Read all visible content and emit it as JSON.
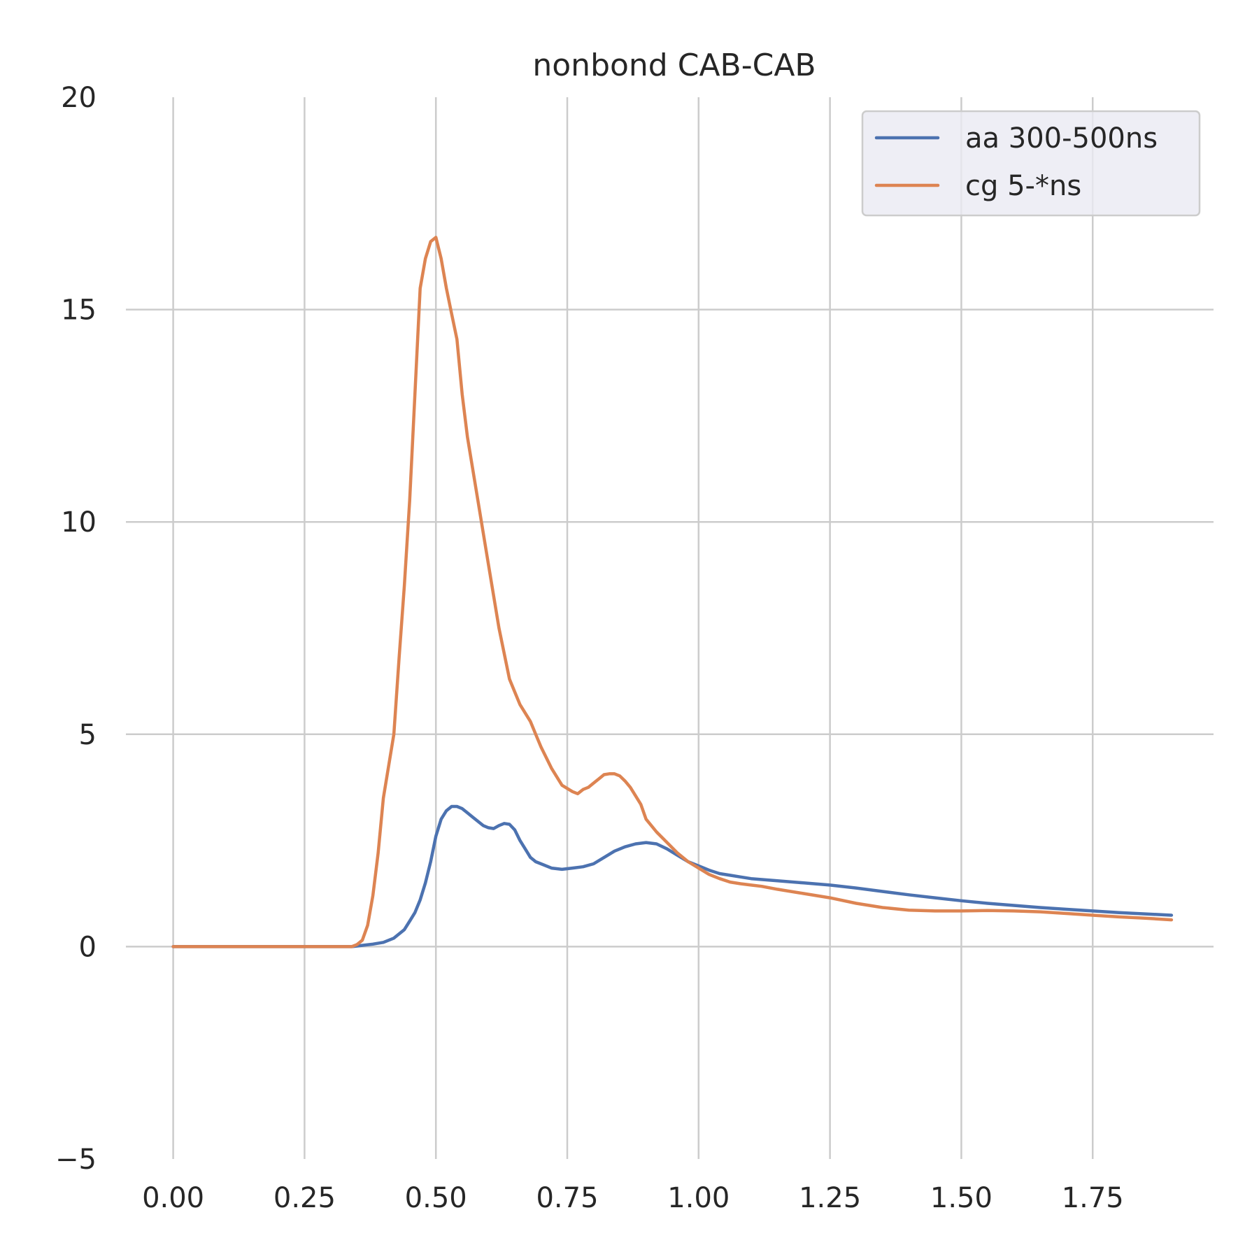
{
  "chart_data": {
    "type": "line",
    "title": "nonbond CAB-CAB",
    "xlabel": "",
    "ylabel": "",
    "xlim": [
      -0.09,
      1.98
    ],
    "ylim": [
      -5,
      20
    ],
    "xticks": [
      "0.00",
      "0.25",
      "0.50",
      "0.75",
      "1.00",
      "1.25",
      "1.50",
      "1.75"
    ],
    "xtick_values": [
      0,
      0.25,
      0.5,
      0.75,
      1.0,
      1.25,
      1.5,
      1.75
    ],
    "yticks": [
      "−5",
      "0",
      "5",
      "10",
      "15",
      "20"
    ],
    "ytick_values": [
      -5,
      0,
      5,
      10,
      15,
      20
    ],
    "grid": true,
    "legend_position": "top-right",
    "series": [
      {
        "name": "aa 300-500ns",
        "color": "#4c72b0",
        "x": [
          0,
          0.1,
          0.2,
          0.3,
          0.34,
          0.36,
          0.38,
          0.4,
          0.42,
          0.44,
          0.45,
          0.46,
          0.47,
          0.48,
          0.49,
          0.5,
          0.51,
          0.52,
          0.53,
          0.54,
          0.55,
          0.56,
          0.57,
          0.58,
          0.59,
          0.6,
          0.61,
          0.62,
          0.63,
          0.64,
          0.65,
          0.66,
          0.67,
          0.68,
          0.69,
          0.7,
          0.72,
          0.74,
          0.76,
          0.78,
          0.8,
          0.82,
          0.84,
          0.86,
          0.88,
          0.9,
          0.92,
          0.94,
          0.96,
          0.98,
          1.0,
          1.02,
          1.04,
          1.06,
          1.08,
          1.1,
          1.15,
          1.2,
          1.25,
          1.3,
          1.35,
          1.4,
          1.45,
          1.5,
          1.55,
          1.6,
          1.65,
          1.7,
          1.75,
          1.8,
          1.85,
          1.9
        ],
        "y": [
          0,
          0,
          0,
          0,
          0,
          0.03,
          0.06,
          0.1,
          0.2,
          0.4,
          0.6,
          0.8,
          1.1,
          1.5,
          2.0,
          2.6,
          3.0,
          3.2,
          3.3,
          3.3,
          3.25,
          3.15,
          3.05,
          2.95,
          2.85,
          2.8,
          2.78,
          2.85,
          2.9,
          2.88,
          2.75,
          2.5,
          2.3,
          2.1,
          2.0,
          1.95,
          1.85,
          1.82,
          1.85,
          1.88,
          1.95,
          2.1,
          2.25,
          2.35,
          2.42,
          2.45,
          2.42,
          2.3,
          2.15,
          2.0,
          1.9,
          1.8,
          1.72,
          1.68,
          1.64,
          1.6,
          1.55,
          1.5,
          1.45,
          1.38,
          1.3,
          1.22,
          1.15,
          1.08,
          1.02,
          0.97,
          0.92,
          0.88,
          0.84,
          0.8,
          0.77,
          0.74
        ]
      },
      {
        "name": "cg 5-*ns",
        "color": "#dd8452",
        "x": [
          0,
          0.1,
          0.2,
          0.3,
          0.34,
          0.35,
          0.36,
          0.37,
          0.38,
          0.39,
          0.4,
          0.42,
          0.43,
          0.44,
          0.45,
          0.46,
          0.47,
          0.48,
          0.49,
          0.5,
          0.51,
          0.52,
          0.53,
          0.54,
          0.55,
          0.56,
          0.58,
          0.6,
          0.62,
          0.64,
          0.65,
          0.66,
          0.67,
          0.68,
          0.69,
          0.7,
          0.72,
          0.74,
          0.76,
          0.77,
          0.78,
          0.79,
          0.8,
          0.81,
          0.82,
          0.83,
          0.84,
          0.85,
          0.86,
          0.87,
          0.88,
          0.89,
          0.9,
          0.92,
          0.94,
          0.96,
          0.98,
          1.0,
          1.02,
          1.04,
          1.06,
          1.08,
          1.1,
          1.12,
          1.15,
          1.2,
          1.25,
          1.3,
          1.35,
          1.4,
          1.45,
          1.5,
          1.55,
          1.6,
          1.65,
          1.7,
          1.75,
          1.8,
          1.85,
          1.9
        ],
        "y": [
          0,
          0,
          0,
          0,
          0,
          0.05,
          0.15,
          0.5,
          1.2,
          2.2,
          3.5,
          5.0,
          6.8,
          8.5,
          10.5,
          13.0,
          15.5,
          16.2,
          16.6,
          16.7,
          16.2,
          15.5,
          14.9,
          14.3,
          13.0,
          12.0,
          10.5,
          9.0,
          7.5,
          6.3,
          6.0,
          5.7,
          5.5,
          5.3,
          5.0,
          4.7,
          4.2,
          3.8,
          3.65,
          3.6,
          3.7,
          3.75,
          3.85,
          3.95,
          4.05,
          4.07,
          4.07,
          4.02,
          3.9,
          3.75,
          3.55,
          3.35,
          3.0,
          2.7,
          2.45,
          2.2,
          2.0,
          1.85,
          1.7,
          1.6,
          1.52,
          1.48,
          1.45,
          1.42,
          1.35,
          1.25,
          1.15,
          1.02,
          0.92,
          0.86,
          0.84,
          0.84,
          0.85,
          0.84,
          0.82,
          0.78,
          0.74,
          0.7,
          0.67,
          0.63
        ]
      }
    ]
  }
}
